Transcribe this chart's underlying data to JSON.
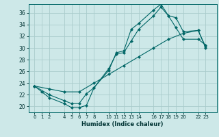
{
  "xlabel": "Humidex (Indice chaleur)",
  "bg_color": "#cde8e8",
  "grid_color": "#aacccc",
  "line_color": "#006666",
  "xticks": [
    0,
    1,
    2,
    4,
    5,
    6,
    7,
    8,
    10,
    11,
    12,
    13,
    14,
    16,
    17,
    18,
    19,
    20,
    22,
    23
  ],
  "yticks": [
    20,
    22,
    24,
    26,
    28,
    30,
    32,
    34,
    36
  ],
  "xlim": [
    -0.8,
    24.5
  ],
  "ylim": [
    19.0,
    37.5
  ],
  "line1_x": [
    0,
    1,
    2,
    4,
    5,
    6,
    7,
    8,
    10,
    11,
    12,
    13,
    14,
    16,
    17,
    18,
    19,
    20,
    22,
    23
  ],
  "line1_y": [
    23.5,
    22.5,
    21.5,
    20.5,
    19.8,
    19.8,
    20.2,
    23.2,
    26.5,
    29.0,
    29.2,
    31.2,
    33.2,
    35.5,
    37.0,
    35.5,
    35.2,
    32.8,
    33.0,
    30.2
  ],
  "line2_x": [
    0,
    2,
    4,
    5,
    6,
    7,
    8,
    10,
    11,
    12,
    13,
    14,
    16,
    17,
    18,
    19,
    20,
    22,
    23
  ],
  "line2_y": [
    23.5,
    22.0,
    21.0,
    20.5,
    20.5,
    22.2,
    23.2,
    26.2,
    29.2,
    29.5,
    33.2,
    34.2,
    36.5,
    37.5,
    35.5,
    33.5,
    31.5,
    31.5,
    30.5
  ],
  "line3_x": [
    0,
    2,
    4,
    6,
    8,
    10,
    12,
    14,
    16,
    18,
    20,
    22,
    23
  ],
  "line3_y": [
    23.5,
    23.0,
    22.5,
    22.5,
    24.0,
    25.5,
    27.0,
    28.5,
    30.0,
    31.5,
    32.5,
    33.0,
    30.0
  ]
}
